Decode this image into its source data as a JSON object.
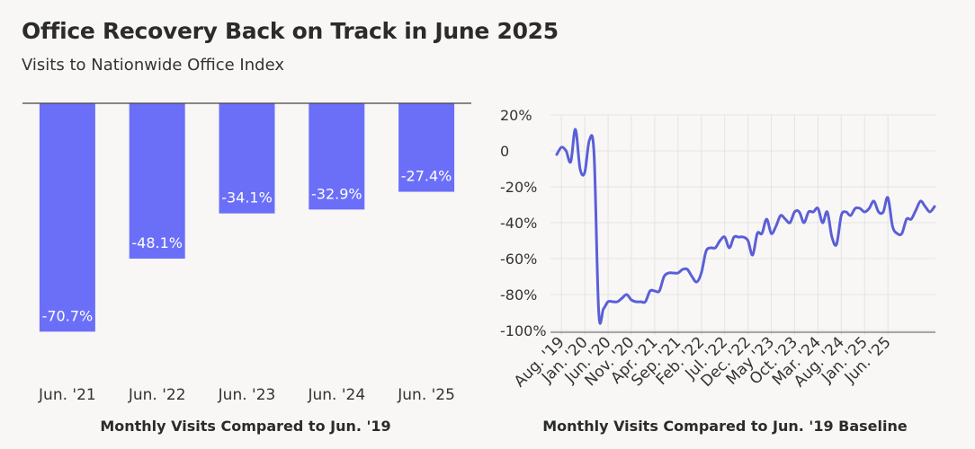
{
  "header": {
    "title": "Office Recovery Back on Track in June 2025",
    "subtitle": "Visits to Nationwide Office Index"
  },
  "colors": {
    "bar": "#6b6ff8",
    "line": "#5a5fd8",
    "grid": "#e4e4e4",
    "axis": "#555555"
  },
  "chart_data": [
    {
      "type": "bar",
      "categories": [
        "Jun. '21",
        "Jun. '22",
        "Jun. '23",
        "Jun. '24",
        "Jun. '25"
      ],
      "values": [
        -70.7,
        -48.1,
        -34.1,
        -32.9,
        -27.4
      ],
      "data_labels": [
        "-70.7%",
        "-48.1%",
        "-34.1%",
        "-32.9%",
        "-27.4%"
      ],
      "xlabel": "Monthly Visits Compared to Jun. '19",
      "ylim": [
        -72,
        0
      ]
    },
    {
      "type": "line",
      "xlabel": "Monthly Visits Compared to Jun. '19 Baseline",
      "ylim": [
        -100,
        20
      ],
      "yticks": [
        20,
        0,
        -20,
        -40,
        -60,
        -80,
        -100
      ],
      "ytick_labels": [
        "20%",
        "0",
        "-20%",
        "-40%",
        "-60%",
        "-80%",
        "-100%"
      ],
      "xtick_labels": [
        "Aug. '19",
        "Jan. '20",
        "Jun. '20",
        "Nov. '20",
        "Apr. '21",
        "Sep. '21",
        "Feb. '22",
        "Jul. '22",
        "Dec. '22",
        "May '23",
        "Oct. '23",
        "Mar. '24",
        "Aug. '24",
        "Jan. '25",
        "Jun. '25"
      ],
      "grid": true,
      "series": [
        {
          "values": [
            -2,
            2,
            0,
            -6,
            12,
            -10,
            -12,
            6,
            -2,
            -90,
            -88,
            -84,
            -84,
            -84,
            -82,
            -80,
            -83,
            -84,
            -84,
            -84,
            -78,
            -78,
            -78,
            -70,
            -68,
            -68,
            -68,
            -66,
            -66,
            -70,
            -73,
            -68,
            -56,
            -54,
            -54,
            -50,
            -48,
            -54,
            -48,
            -48,
            -48,
            -50,
            -58,
            -46,
            -46,
            -38,
            -46,
            -42,
            -36,
            -38,
            -40,
            -34,
            -34,
            -40,
            -34,
            -34,
            -32,
            -40,
            -34,
            -48,
            -52,
            -36,
            -34,
            -36,
            -32,
            -32,
            -34,
            -32,
            -28,
            -34,
            -34,
            -26,
            -42,
            -46,
            -46,
            -38,
            -38,
            -33,
            -28,
            -31,
            -34,
            -31
          ]
        }
      ]
    }
  ]
}
